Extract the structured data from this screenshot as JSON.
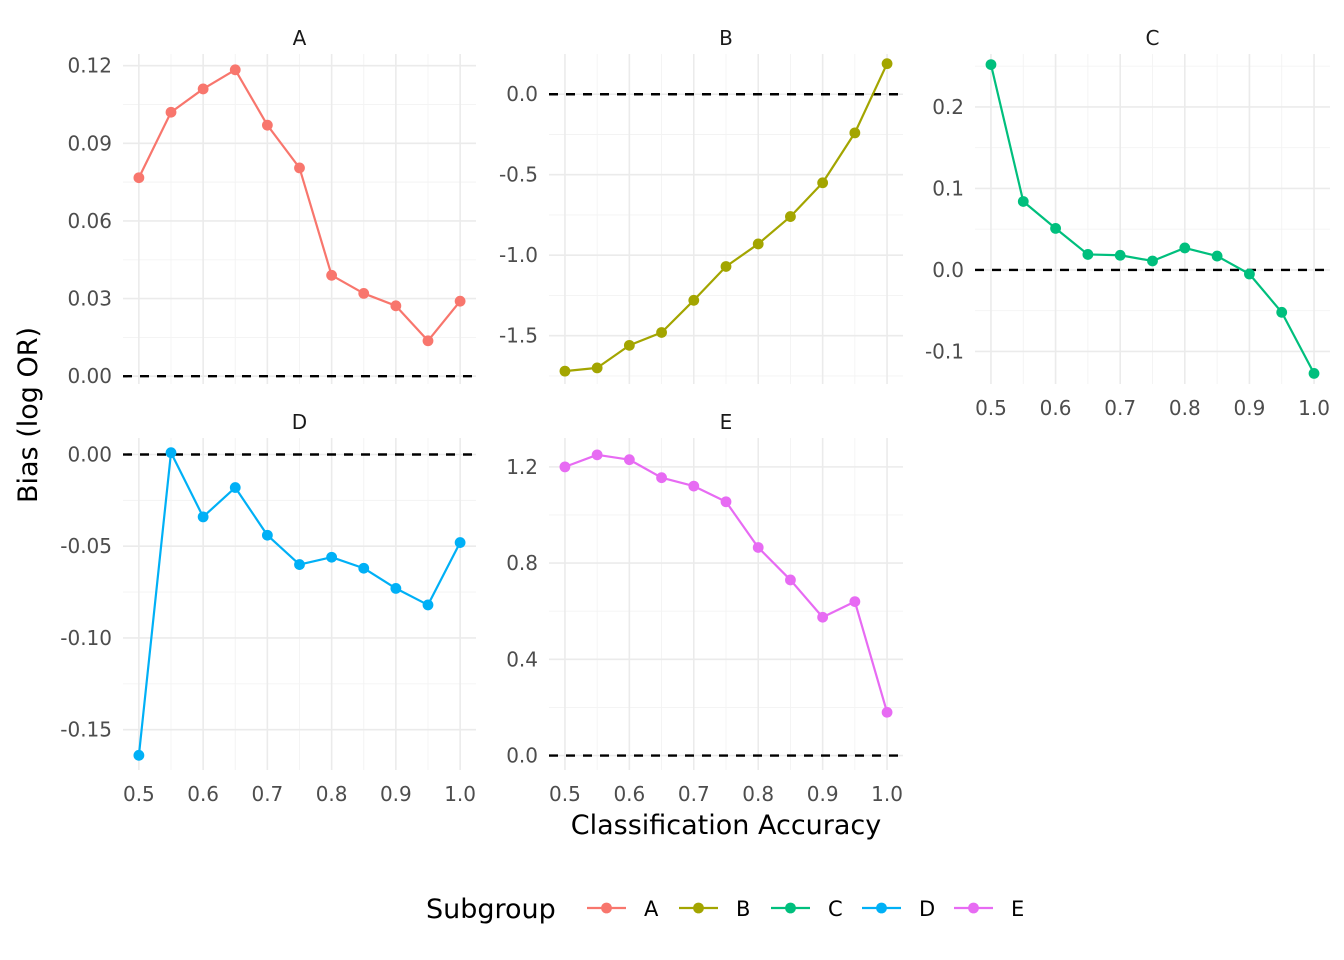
{
  "chart_data": {
    "type": "line",
    "xlabel": "Classification Accuracy",
    "ylabel": "Bias (log OR)",
    "legend": {
      "title": "Subgroup",
      "position": "bottom"
    },
    "reference_line": {
      "y": 0,
      "style": "dashed"
    },
    "grid": true,
    "x": [
      0.5,
      0.55,
      0.6,
      0.65,
      0.7,
      0.75,
      0.8,
      0.85,
      0.9,
      0.95,
      1.0
    ],
    "x_ticks": [
      0.5,
      0.6,
      0.7,
      0.8,
      0.9,
      1.0
    ],
    "x_tick_labels": [
      "0.5",
      "0.6",
      "0.7",
      "0.8",
      "0.9",
      "1.0"
    ],
    "series": [
      {
        "name": "A",
        "panel": "A",
        "color": "#F8766D",
        "values": [
          0.0767,
          0.102,
          0.111,
          0.1184,
          0.097,
          0.0805,
          0.039,
          0.032,
          0.0272,
          0.0137,
          0.029
        ],
        "ylim": [
          -0.003,
          0.1245
        ],
        "y_ticks": [
          0.0,
          0.03,
          0.06,
          0.09,
          0.12
        ],
        "y_tick_labels": [
          "0.00",
          "0.03",
          "0.06",
          "0.09",
          "0.12"
        ]
      },
      {
        "name": "B",
        "panel": "B",
        "color": "#A3A500",
        "values": [
          -1.72,
          -1.7,
          -1.56,
          -1.48,
          -1.28,
          -1.07,
          -0.93,
          -0.76,
          -0.55,
          -0.24,
          0.19
        ],
        "ylim": [
          -1.8,
          0.25
        ],
        "y_ticks": [
          -1.5,
          -1.0,
          -0.5,
          0.0
        ],
        "y_tick_labels": [
          "-1.5",
          "-1.0",
          "-0.5",
          "0.0"
        ]
      },
      {
        "name": "C",
        "panel": "C",
        "color": "#00BF7D",
        "values": [
          0.252,
          0.084,
          0.051,
          0.019,
          0.018,
          0.011,
          0.027,
          0.017,
          -0.005,
          -0.052,
          -0.127
        ],
        "ylim": [
          -0.14,
          0.265
        ],
        "y_ticks": [
          -0.1,
          0.0,
          0.1,
          0.2
        ],
        "y_tick_labels": [
          "-0.1",
          "0.0",
          "0.1",
          "0.2"
        ]
      },
      {
        "name": "D",
        "panel": "D",
        "color": "#00B0F6",
        "values": [
          -0.164,
          0.001,
          -0.034,
          -0.018,
          -0.044,
          -0.06,
          -0.056,
          -0.062,
          -0.073,
          -0.082,
          -0.048
        ],
        "ylim": [
          -0.172,
          0.009
        ],
        "y_ticks": [
          -0.15,
          -0.1,
          -0.05,
          0.0
        ],
        "y_tick_labels": [
          "-0.15",
          "-0.10",
          "-0.05",
          "0.00"
        ]
      },
      {
        "name": "E",
        "panel": "E",
        "color": "#E76BF3",
        "values": [
          1.2,
          1.25,
          1.23,
          1.155,
          1.12,
          1.055,
          0.865,
          0.73,
          0.575,
          0.64,
          0.18
        ],
        "ylim": [
          -0.06,
          1.32
        ],
        "y_ticks": [
          0.0,
          0.4,
          0.8,
          1.2
        ],
        "y_tick_labels": [
          "0.0",
          "0.4",
          "0.8",
          "1.2"
        ]
      }
    ]
  }
}
